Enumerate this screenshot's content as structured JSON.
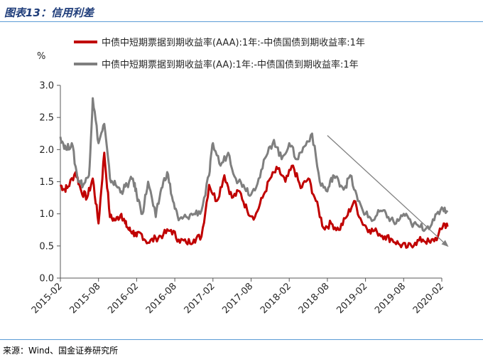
{
  "header": {
    "title": "图表13：信用利差"
  },
  "footer": {
    "source": "来源：Wind、国金证券研究所"
  },
  "chart_data": {
    "type": "line",
    "ylabel": "%",
    "ylim": [
      0.0,
      3.0
    ],
    "yticks": [
      "0.0",
      "0.5",
      "1.0",
      "1.5",
      "2.0",
      "2.5",
      "3.0"
    ],
    "categories": [
      "2015-02",
      "2015-08",
      "2016-02",
      "2016-08",
      "2017-02",
      "2017-08",
      "2018-02",
      "2018-08",
      "2019-02",
      "2019-08",
      "2020-02"
    ],
    "legend_position": "top",
    "series": [
      {
        "name": "中债中短期票据到期收益率(AAA):1年:-中债国债到期收益率:1年",
        "color": "#c00000",
        "x": [
          0.0,
          0.1,
          0.2,
          0.4,
          0.55,
          0.7,
          0.85,
          1.0,
          1.15,
          1.3,
          1.45,
          1.6,
          1.7,
          1.8,
          1.9,
          2.0,
          2.1,
          2.3,
          2.5,
          2.7,
          2.9,
          3.1,
          3.3,
          3.5,
          3.7,
          3.9,
          4.1,
          4.3,
          4.5,
          4.7,
          4.9,
          5.1,
          5.3,
          5.5,
          5.7,
          5.9,
          6.1,
          6.3,
          6.5,
          6.7,
          6.9,
          7.1,
          7.3,
          7.5,
          7.7,
          7.9,
          8.1,
          8.3,
          8.5,
          8.7,
          8.9,
          9.1,
          9.3,
          9.5,
          9.7,
          9.9,
          10.05,
          10.15
        ],
        "values": [
          1.45,
          1.38,
          1.42,
          1.65,
          1.35,
          1.25,
          1.55,
          0.85,
          1.95,
          0.95,
          0.9,
          1.0,
          0.85,
          0.75,
          0.72,
          0.65,
          0.7,
          0.55,
          0.62,
          0.68,
          0.75,
          0.6,
          0.55,
          0.6,
          0.65,
          1.45,
          1.2,
          1.6,
          1.25,
          1.35,
          1.05,
          0.95,
          1.25,
          1.55,
          1.7,
          1.5,
          1.75,
          1.4,
          1.55,
          1.2,
          0.78,
          0.85,
          0.75,
          0.95,
          1.2,
          0.88,
          0.75,
          0.72,
          0.65,
          0.6,
          0.52,
          0.48,
          0.55,
          0.6,
          0.55,
          0.65,
          0.85,
          0.8
        ]
      },
      {
        "name": "中债中短期票据到期收益率(AA):1年:-中债国债到期收益率:1年",
        "color": "#7f7f7f",
        "x": [
          0.0,
          0.15,
          0.3,
          0.45,
          0.6,
          0.75,
          0.85,
          1.0,
          1.15,
          1.3,
          1.45,
          1.6,
          1.75,
          1.9,
          2.0,
          2.15,
          2.3,
          2.5,
          2.65,
          2.8,
          2.95,
          3.1,
          3.3,
          3.5,
          3.7,
          3.9,
          4.0,
          4.2,
          4.4,
          4.6,
          4.8,
          5.0,
          5.2,
          5.4,
          5.6,
          5.8,
          6.0,
          6.2,
          6.4,
          6.6,
          6.8,
          7.0,
          7.15,
          7.3,
          7.45,
          7.6,
          7.8,
          8.0,
          8.2,
          8.4,
          8.6,
          8.8,
          9.0,
          9.2,
          9.4,
          9.6,
          9.8,
          10.0,
          10.15
        ],
        "values": [
          2.2,
          2.0,
          2.1,
          1.55,
          1.45,
          1.6,
          2.8,
          2.1,
          2.4,
          1.55,
          1.45,
          1.35,
          1.45,
          1.55,
          1.3,
          1.0,
          1.5,
          0.95,
          1.4,
          1.65,
          1.2,
          0.9,
          0.95,
          1.0,
          1.05,
          1.6,
          2.1,
          1.75,
          1.95,
          1.55,
          1.45,
          1.3,
          1.55,
          1.9,
          2.15,
          1.85,
          2.1,
          1.85,
          2.05,
          2.25,
          1.5,
          1.35,
          1.6,
          1.5,
          1.4,
          1.6,
          1.2,
          1.0,
          0.9,
          1.05,
          0.95,
          0.85,
          1.0,
          0.85,
          0.8,
          0.78,
          0.9,
          1.1,
          1.05
        ]
      }
    ],
    "annotations": [
      {
        "type": "arrow",
        "color": "#808080",
        "from": {
          "x": 7.0,
          "y": 2.22
        },
        "to": {
          "x": 10.15,
          "y": 0.5
        }
      }
    ]
  }
}
